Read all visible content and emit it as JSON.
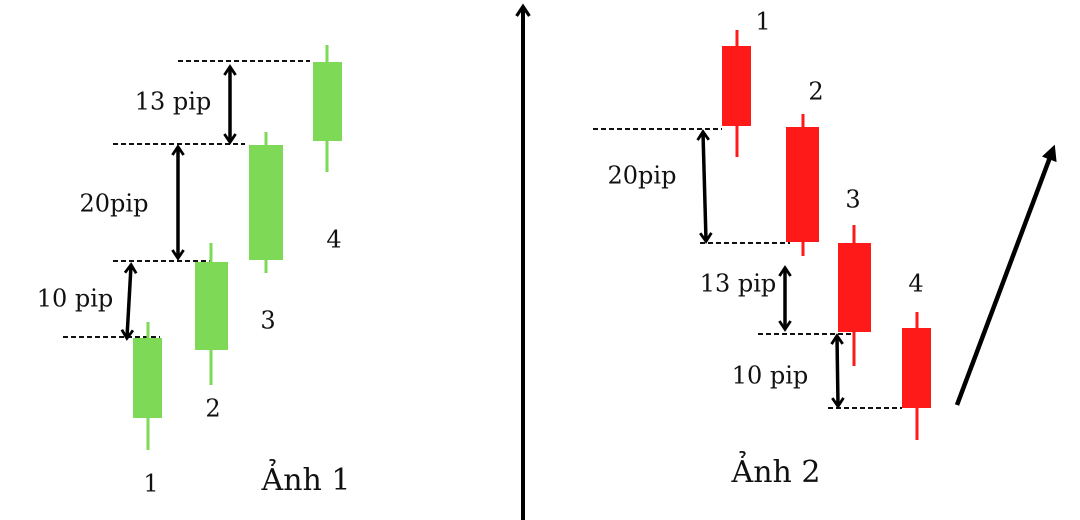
{
  "panels": [
    {
      "caption": "Ảnh 1",
      "candle_labels": [
        "1",
        "2",
        "3",
        "4"
      ],
      "gap_labels": [
        "10 pip",
        "20pip",
        "13 pip"
      ]
    },
    {
      "caption": "Ảnh 2",
      "candle_labels": [
        "1",
        "2",
        "3",
        "4"
      ],
      "gap_labels": [
        "20pip",
        "13 pip",
        "10 pip"
      ]
    }
  ]
}
